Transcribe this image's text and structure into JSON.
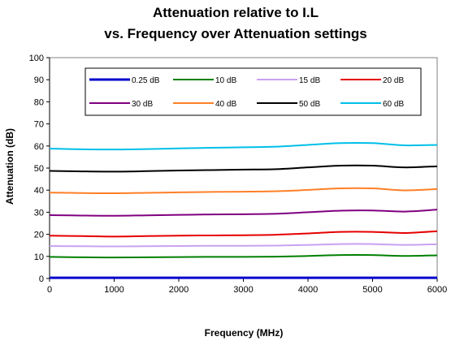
{
  "chart_data": {
    "type": "line",
    "title_line1": "Attenuation relative to I.L",
    "title_line2": "vs. Frequency over Attenuation settings",
    "xlabel": "Frequency (MHz)",
    "ylabel": "Attenuation (dB)",
    "xlim": [
      0,
      6000
    ],
    "ylim": [
      0,
      100
    ],
    "x_ticks": [
      "0",
      "1000",
      "2000",
      "3000",
      "4000",
      "5000",
      "6000"
    ],
    "y_ticks": [
      "0",
      "10",
      "20",
      "30",
      "40",
      "50",
      "60",
      "70",
      "80",
      "90",
      "100"
    ],
    "grid": false,
    "legend_position": "top",
    "x": [
      0,
      500,
      1000,
      1500,
      2000,
      2500,
      3000,
      3500,
      4000,
      4500,
      5000,
      5500,
      6000
    ],
    "series": [
      {
        "name": "0.25 dB",
        "color": "#0000cc",
        "values": [
          0.3,
          0.3,
          0.3,
          0.3,
          0.3,
          0.3,
          0.3,
          0.3,
          0.3,
          0.3,
          0.3,
          0.3,
          0.3
        ]
      },
      {
        "name": "10 dB",
        "color": "#008000",
        "values": [
          9.8,
          9.6,
          9.5,
          9.6,
          9.7,
          9.8,
          9.8,
          9.9,
          10.2,
          10.6,
          10.6,
          10.2,
          10.5
        ]
      },
      {
        "name": "15 dB",
        "color": "#c8a2f0",
        "values": [
          14.7,
          14.6,
          14.5,
          14.6,
          14.7,
          14.8,
          14.8,
          14.9,
          15.2,
          15.6,
          15.6,
          15.2,
          15.5
        ]
      },
      {
        "name": "20 dB",
        "color": "#e60000",
        "values": [
          19.4,
          19.2,
          19.0,
          19.2,
          19.4,
          19.5,
          19.6,
          19.8,
          20.4,
          21.1,
          21.1,
          20.6,
          21.4
        ]
      },
      {
        "name": "30 dB",
        "color": "#800080",
        "values": [
          28.7,
          28.5,
          28.4,
          28.6,
          28.8,
          29.0,
          29.1,
          29.3,
          30.0,
          30.7,
          30.8,
          30.3,
          31.2
        ]
      },
      {
        "name": "40 dB",
        "color": "#ff7f27",
        "values": [
          38.9,
          38.7,
          38.6,
          38.8,
          39.0,
          39.2,
          39.3,
          39.5,
          40.1,
          40.8,
          40.8,
          39.9,
          40.5
        ]
      },
      {
        "name": "50 dB",
        "color": "#000000",
        "values": [
          48.7,
          48.5,
          48.4,
          48.6,
          48.9,
          49.1,
          49.3,
          49.5,
          50.3,
          51.1,
          51.1,
          50.3,
          50.8
        ]
      },
      {
        "name": "60 dB",
        "color": "#00bfe8",
        "values": [
          58.8,
          58.5,
          58.4,
          58.6,
          58.9,
          59.2,
          59.4,
          59.7,
          60.5,
          61.3,
          61.3,
          60.3,
          60.5
        ]
      }
    ]
  }
}
